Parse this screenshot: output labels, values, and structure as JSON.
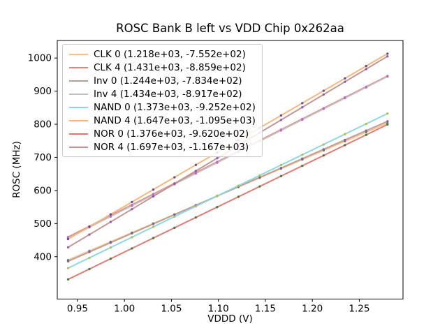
{
  "figure": {
    "background": "#ffffff",
    "axis_color": "#000000",
    "legend_border_color": "#cccccc"
  },
  "chart_data": {
    "type": "line",
    "title": "ROSC Bank B left vs VDD Chip 0x262aa",
    "xlabel": "VDDD (V)",
    "ylabel": "ROSC (MHz)",
    "xlim": [
      0.9285,
      1.2965
    ],
    "ylim": [
      272,
      1053
    ],
    "xticks": [
      0.95,
      1.0,
      1.05,
      1.1,
      1.15,
      1.2,
      1.25
    ],
    "yticks": [
      400,
      500,
      600,
      700,
      800,
      900,
      1000
    ],
    "grid": false,
    "legend_position": "upper left",
    "x_points": [
      0.94,
      0.9627,
      0.9853,
      1.008,
      1.0307,
      1.0533,
      1.076,
      1.0987,
      1.1213,
      1.144,
      1.1667,
      1.1893,
      1.212,
      1.2347,
      1.2573,
      1.28
    ],
    "series": [
      {
        "name": "CLK 0",
        "label": "CLK 0 (1.218e+03, -7.552e+02)",
        "slope": 1218,
        "intercept": -755.2,
        "line_color": "#f7c088",
        "marker_color": "#3f8f4f"
      },
      {
        "name": "CLK 4",
        "label": "CLK 4 (1.431e+03, -8.859e+02)",
        "slope": 1431,
        "intercept": -885.9,
        "line_color": "#e38380",
        "marker_color": "#c75fc0"
      },
      {
        "name": "Inv 0",
        "label": "Inv 0 (1.244e+03, -7.834e+02)",
        "slope": 1244,
        "intercept": -783.4,
        "line_color": "#bd9c95",
        "marker_color": "#7d55aa"
      },
      {
        "name": "Inv 4",
        "label": "Inv 4 (1.434e+03, -8.917e+02)",
        "slope": 1434,
        "intercept": -891.7,
        "line_color": "#c1c1c1",
        "marker_color": "#bb64c9"
      },
      {
        "name": "NAND 0",
        "label": "NAND 0 (1.373e+03, -9.252e+02)",
        "slope": 1373,
        "intercept": -925.2,
        "line_color": "#87d7e0",
        "marker_color": "#b9bd3b"
      },
      {
        "name": "NAND 4",
        "label": "NAND 4 (1.647e+03, -1.095e+03)",
        "slope": 1647,
        "intercept": -1095,
        "line_color": "#f9b271",
        "marker_color": "#53409a"
      },
      {
        "name": "NOR 0",
        "label": "NOR 0 (1.376e+03, -9.620e+02)",
        "slope": 1376,
        "intercept": -962,
        "line_color": "#e2756d",
        "marker_color": "#2f7d38"
      },
      {
        "name": "NOR 4",
        "label": "NOR 4 (1.697e+03, -1.167e+03)",
        "slope": 1697,
        "intercept": -1167,
        "line_color": "#bf908d",
        "marker_color": "#8857a8"
      }
    ]
  }
}
